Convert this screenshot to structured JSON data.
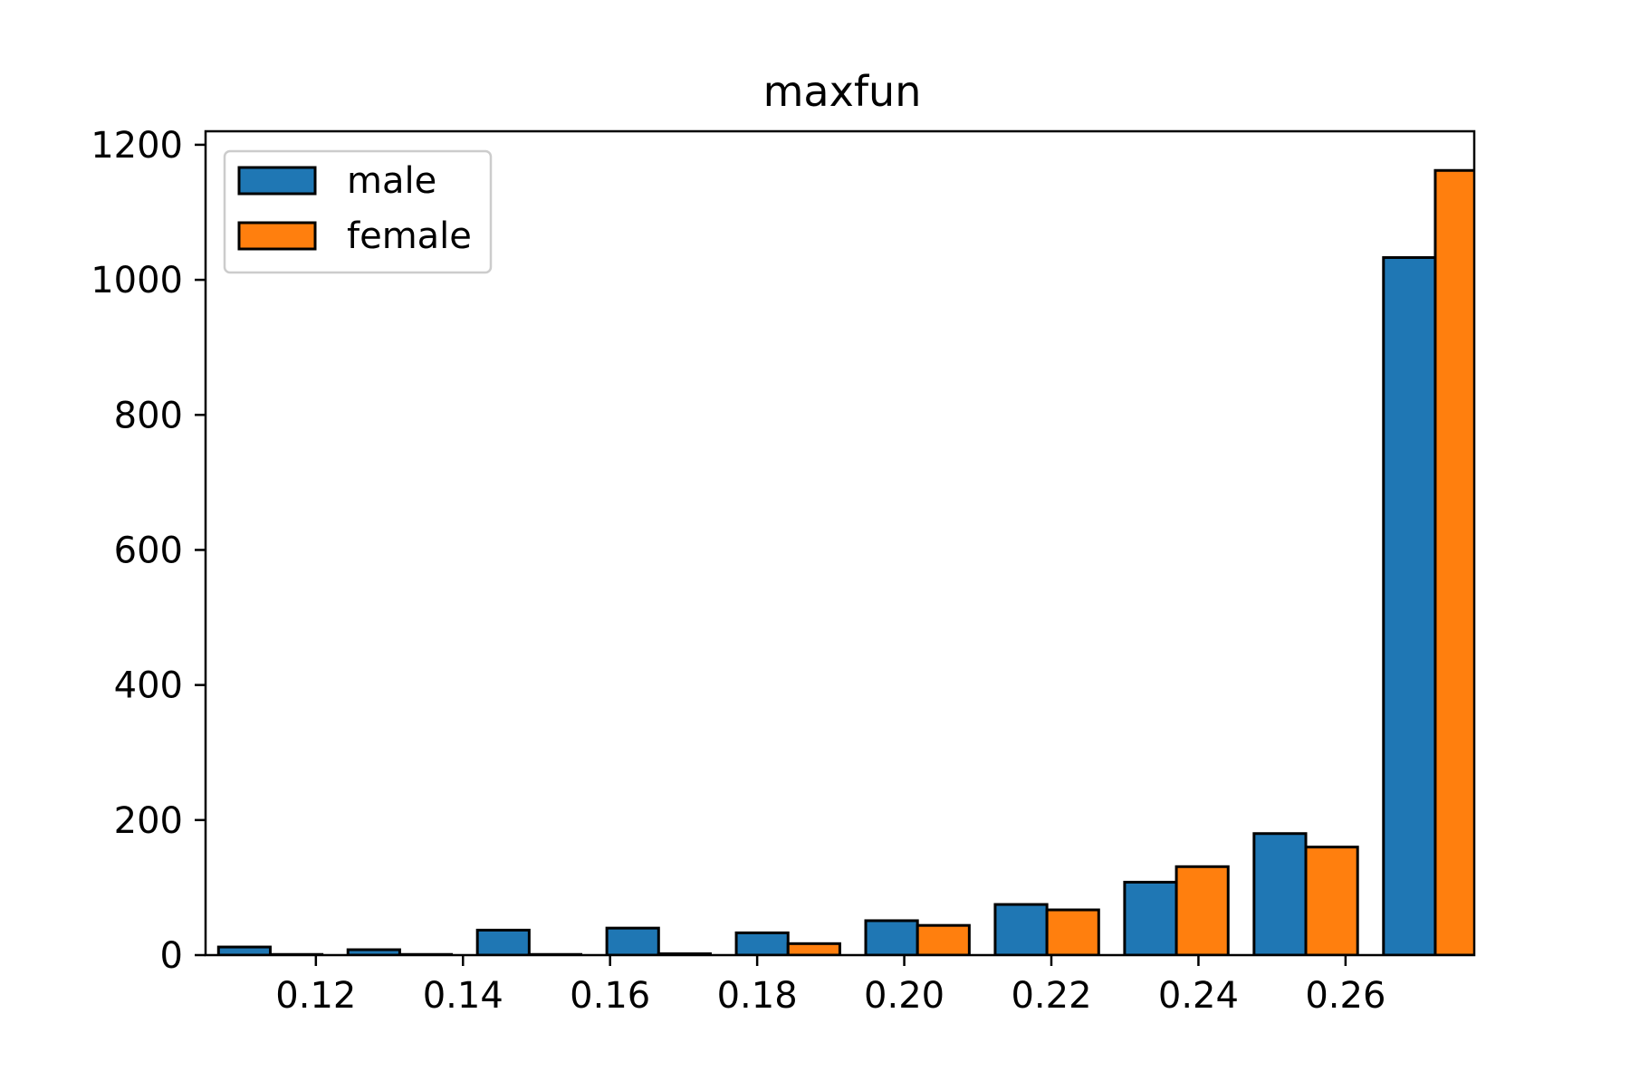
{
  "chart_data": {
    "type": "bar",
    "title": "maxfun",
    "xlabel": "",
    "ylabel": "",
    "xlim": [
      0.105,
      0.2775
    ],
    "ylim": [
      0,
      1220
    ],
    "x_ticks": [
      "0.12",
      "0.14",
      "0.16",
      "0.18",
      "0.20",
      "0.22",
      "0.24",
      "0.26"
    ],
    "y_ticks": [
      "0",
      "200",
      "400",
      "600",
      "800",
      "1000",
      "1200"
    ],
    "grid": false,
    "legend_position": "top-left",
    "bin_edges": [
      0.105,
      0.1226,
      0.1402,
      0.1578,
      0.1754,
      0.193,
      0.2106,
      0.2282,
      0.2458,
      0.2634,
      0.281
    ],
    "series": [
      {
        "name": "male",
        "color": "#1f77b4",
        "values": [
          12,
          8,
          37,
          40,
          33,
          51,
          75,
          108,
          180,
          1033
        ]
      },
      {
        "name": "female",
        "color": "#ff7f0e",
        "values": [
          1,
          1,
          1,
          2,
          17,
          44,
          67,
          131,
          160,
          1162
        ]
      }
    ]
  }
}
